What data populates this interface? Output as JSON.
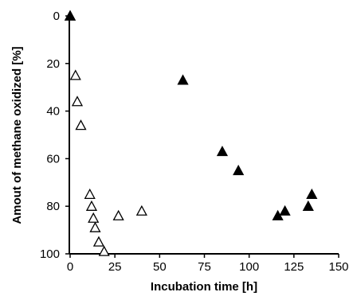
{
  "chart_data": {
    "type": "scatter",
    "title": "",
    "xlabel": "Incubation time [h]",
    "ylabel": "Amout of methane oxidized [%]",
    "xlim": [
      0,
      150
    ],
    "ylim": [
      0,
      100
    ],
    "y_inverted": true,
    "grid": false,
    "x_ticks": [
      "0",
      "25",
      "50",
      "75",
      "100",
      "125",
      "150"
    ],
    "y_ticks": [
      "0",
      "20",
      "40",
      "60",
      "80",
      "100"
    ],
    "series": [
      {
        "marker": "open-triangle",
        "color": "#000000",
        "points": [
          {
            "x": 0,
            "y": 0
          },
          {
            "x": 3,
            "y": 25
          },
          {
            "x": 4,
            "y": 36
          },
          {
            "x": 6,
            "y": 46
          },
          {
            "x": 11,
            "y": 75
          },
          {
            "x": 12,
            "y": 80
          },
          {
            "x": 13,
            "y": 85
          },
          {
            "x": 14,
            "y": 89
          },
          {
            "x": 16,
            "y": 95
          },
          {
            "x": 19,
            "y": 99
          },
          {
            "x": 27,
            "y": 84
          },
          {
            "x": 40,
            "y": 82
          }
        ]
      },
      {
        "marker": "filled-triangle",
        "color": "#000000",
        "points": [
          {
            "x": 0,
            "y": 0
          },
          {
            "x": 63,
            "y": 27
          },
          {
            "x": 85,
            "y": 57
          },
          {
            "x": 94,
            "y": 65
          },
          {
            "x": 116,
            "y": 84
          },
          {
            "x": 120,
            "y": 82
          },
          {
            "x": 133,
            "y": 80
          },
          {
            "x": 135,
            "y": 75
          }
        ]
      }
    ]
  }
}
